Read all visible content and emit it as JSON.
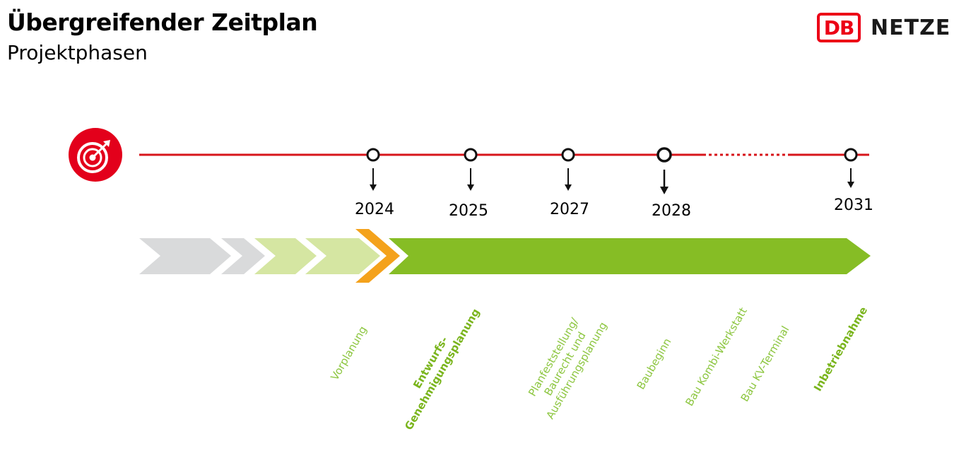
{
  "header": {
    "title": "Übergreifender Zeitplan",
    "subtitle": "Projektphasen"
  },
  "logo": {
    "mark": "DB",
    "text": "NETZE",
    "color": "#ec0016"
  },
  "timeline": {
    "icon": "target-icon",
    "line_color": "#d7151b",
    "years": [
      "2024",
      "2025",
      "2027",
      "2028",
      "2031"
    ]
  },
  "phases": [
    {
      "label": "Vorplanung"
    },
    {
      "label": "Entwurfs-\nGenehmigungsplanung"
    },
    {
      "label": "Planfeststellung/\nBaurecht und\nAusführungsplanung"
    },
    {
      "label": "Baubeginn"
    },
    {
      "label": "Bau Kombi-Werkstatt"
    },
    {
      "label": "Bau KV-Terminal"
    },
    {
      "label": "Inbetriebnahme"
    }
  ],
  "colors": {
    "chevron_grey": "#d9dadb",
    "chevron_light_green": "#d5e6a2",
    "chevron_orange": "#f4a21c",
    "arrow_green": "#86bd25",
    "phase_text": "#8cc63f"
  }
}
